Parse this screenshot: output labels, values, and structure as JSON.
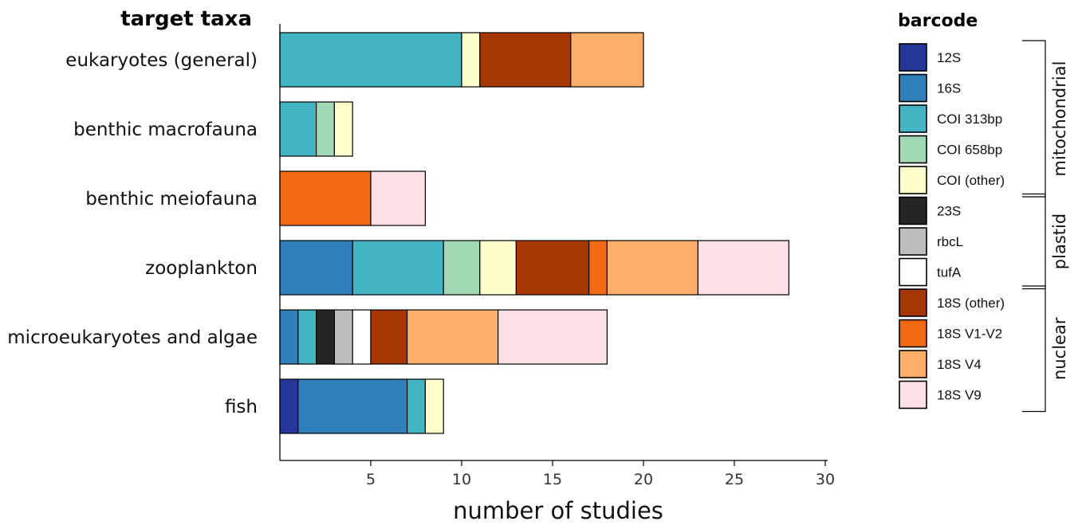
{
  "chart_data": {
    "type": "bar",
    "orientation": "horizontal",
    "stacked": true,
    "title": "",
    "ytitle": "target taxa",
    "xlabel": "number of studies",
    "xlim": [
      0,
      30
    ],
    "xticks": [
      5,
      10,
      15,
      20,
      25,
      30
    ],
    "categories": [
      "eukaryotes (general)",
      "benthic macrofauna",
      "benthic meiofauna",
      "zooplankton",
      "microeukaryotes and algae",
      "fish"
    ],
    "grid": false,
    "legend": {
      "title": "barcode",
      "placement": "right",
      "groups": [
        {
          "name": "mitochondrial",
          "entries": [
            "12S",
            "16S",
            "COI 313bp",
            "COI 658bp",
            "COI (other)"
          ]
        },
        {
          "name": "plastid",
          "entries": [
            "23S",
            "rbcL",
            "tufA"
          ]
        },
        {
          "name": "nuclear",
          "entries": [
            "18S (other)",
            "18S V1-V2",
            "18S V4",
            "18S V9"
          ]
        }
      ]
    },
    "legend_labels": {
      "12S": "12S",
      "16S": "16S",
      "COI 313bp": "COI  313bp",
      "COI 658bp": "COI  658bp",
      "COI (other)": "COI (other)",
      "23S": "23S",
      "rbcL": "rbcL",
      "tufA": "tufA",
      "18S (other)": "18S (other)",
      "18S V1-V2": "18S  V1-V2",
      "18S V4": "18S  V4",
      "18S V9": "18S  V9"
    },
    "series": [
      {
        "name": "12S",
        "color": "#26369a",
        "values": [
          0,
          0,
          0,
          0,
          0,
          1
        ]
      },
      {
        "name": "16S",
        "color": "#2f7fbb",
        "values": [
          0,
          0,
          0,
          4,
          1,
          6
        ]
      },
      {
        "name": "COI 313bp",
        "color": "#43b4c4",
        "values": [
          10,
          2,
          0,
          5,
          1,
          1
        ]
      },
      {
        "name": "COI 658bp",
        "color": "#a1d9b4",
        "values": [
          0,
          1,
          0,
          2,
          0,
          0
        ]
      },
      {
        "name": "COI (other)",
        "color": "#ffffcc",
        "values": [
          1,
          1,
          0,
          2,
          0,
          1
        ]
      },
      {
        "name": "23S",
        "color": "#252525",
        "values": [
          0,
          0,
          0,
          0,
          1,
          0
        ]
      },
      {
        "name": "rbcL",
        "color": "#bdbdbd",
        "values": [
          0,
          0,
          0,
          0,
          1,
          0
        ]
      },
      {
        "name": "tufA",
        "color": "#ffffff",
        "values": [
          0,
          0,
          0,
          0,
          1,
          0
        ]
      },
      {
        "name": "18S (other)",
        "color": "#a63603",
        "values": [
          5,
          0,
          0,
          4,
          2,
          0
        ]
      },
      {
        "name": "18S V1-V2",
        "color": "#f16913",
        "values": [
          0,
          0,
          5,
          1,
          0,
          0
        ]
      },
      {
        "name": "18S V4",
        "color": "#fdae6b",
        "values": [
          4,
          0,
          0,
          5,
          5,
          0
        ]
      },
      {
        "name": "18S V9",
        "color": "#fde0e6",
        "values": [
          0,
          0,
          3,
          5,
          6,
          0
        ]
      }
    ]
  }
}
